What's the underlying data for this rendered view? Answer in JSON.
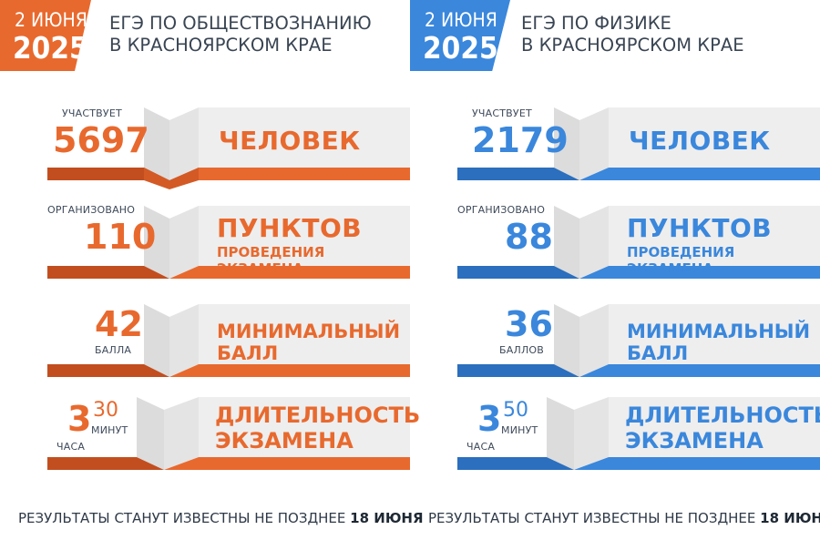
{
  "colors": {
    "orange": "#e8692e",
    "orange_dark": "#c24e1f",
    "blue": "#3a87dc",
    "blue_dark": "#2b6fbe",
    "card": "#eeeeee",
    "card_side": "#d9d9d9"
  },
  "left": {
    "date_line1": "2 ИЮНЯ",
    "date_line2": "2025",
    "title_line1": "ЕГЭ ПО ОБЩЕСТВОЗНАНИЮ",
    "title_line2": "В КРАСНОЯРСКОМ КРАЕ",
    "participants_label": "УЧАСТВУЕТ",
    "participants_value": "5697",
    "participants_unit": "ЧЕЛОВЕК",
    "points_label": "ОРГАНИЗОВАНО",
    "points_value": "110",
    "points_unit": "ПУНКТОВ",
    "points_sub": "ПРОВЕДЕНИЯ ЭКЗАМЕНА",
    "score_value": "42",
    "score_unit": "БАЛЛА",
    "score_title": "МИНИМАЛЬНЫЙ БАЛЛ",
    "duration_hours": "3",
    "duration_hours_unit": "ЧАСА",
    "duration_minutes": "30",
    "duration_minutes_unit": "МИНУТ",
    "duration_title_line1": "ДЛИТЕЛЬНОСТЬ",
    "duration_title_line2": "ЭКЗАМЕНА",
    "footer_text": "РЕЗУЛЬТАТЫ СТАНУТ ИЗВЕСТНЫ НЕ ПОЗДНЕЕ ",
    "footer_date": "18 ИЮНЯ"
  },
  "right": {
    "date_line1": "2 ИЮНЯ",
    "date_line2": "2025",
    "title_line1": "ЕГЭ ПО ФИЗИКЕ",
    "title_line2": "В КРАСНОЯРСКОМ КРАЕ",
    "participants_label": "УЧАСТВУЕТ",
    "participants_value": "2179",
    "participants_unit": "ЧЕЛОВЕК",
    "points_label": "ОРГАНИЗОВАНО",
    "points_value": "88",
    "points_unit": "ПУНКТОВ",
    "points_sub": "ПРОВЕДЕНИЯ ЭКЗАМЕНА",
    "score_value": "36",
    "score_unit": "БАЛЛОВ",
    "score_title": "МИНИМАЛЬНЫЙ БАЛЛ",
    "duration_hours": "3",
    "duration_hours_unit": "ЧАСА",
    "duration_minutes": "50",
    "duration_minutes_unit": "МИНУТ",
    "duration_title_line1": "ДЛИТЕЛЬНОСТЬ",
    "duration_title_line2": "ЭКЗАМЕНА",
    "footer_text": "РЕЗУЛЬТАТЫ СТАНУТ ИЗВЕСТНЫ НЕ ПОЗДНЕЕ ",
    "footer_date": "18 ИЮНЯ"
  }
}
